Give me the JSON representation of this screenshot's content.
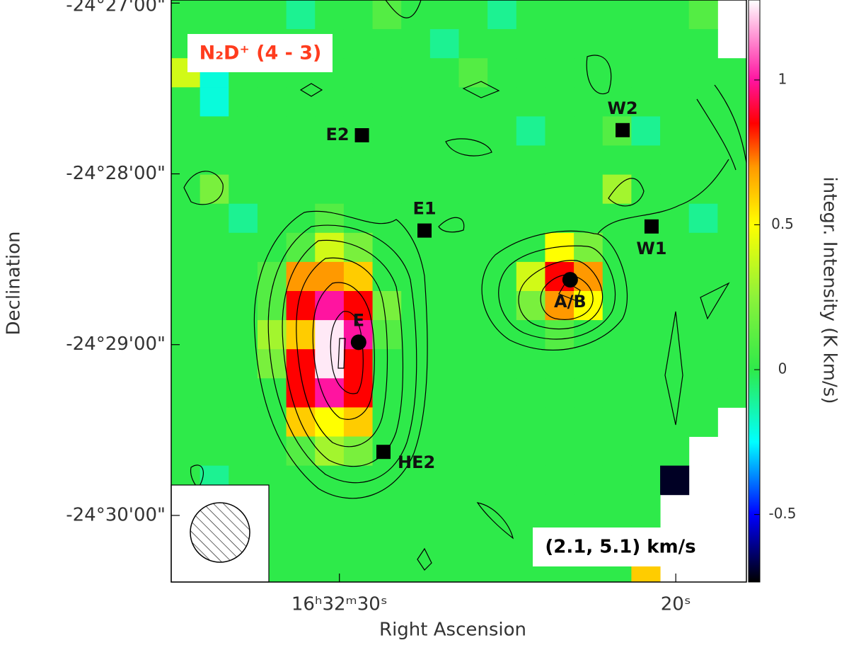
{
  "chart_data": {
    "type": "heatmap",
    "title": "N₂D⁺ (4 - 3)",
    "velocity_range": "(2.1, 5.1) km/s",
    "x_label": "Right Ascension",
    "y_label": "Declination",
    "colorbar_label": "integr. Intensity (K km/s)",
    "xlim": [
      35.0,
      17.9
    ],
    "xticks": [
      {
        "value": 30,
        "label": "16ʰ32ᵐ30ˢ"
      },
      {
        "value": 20,
        "label": "20ˢ"
      }
    ],
    "ylim": [
      -24.5065,
      -24.4497
    ],
    "yticks": [
      {
        "value": -24.45,
        "label": "-24°27'00\""
      },
      {
        "value": -24.466667,
        "label": "-24°28'00\""
      },
      {
        "value": -24.483333,
        "label": "-24°29'00\""
      },
      {
        "value": -24.5,
        "label": "-24°30'00\""
      }
    ],
    "clim": [
      -0.733,
      1.276
    ],
    "cticks": [
      1,
      0.5,
      0,
      -0.5
    ],
    "colormap": [
      {
        "value": -0.733,
        "color": "#000000"
      },
      {
        "value": -0.5,
        "color": "#0000ff"
      },
      {
        "value": -0.25,
        "color": "#00ffff"
      },
      {
        "value": 0,
        "color": "#2eea4a"
      },
      {
        "value": 0.25,
        "color": "#8cf23a"
      },
      {
        "value": 0.5,
        "color": "#ffff00"
      },
      {
        "value": 0.7,
        "color": "#ff9900"
      },
      {
        "value": 0.85,
        "color": "#ff0000"
      },
      {
        "value": 1.0,
        "color": "#ff14a0"
      },
      {
        "value": 1.276,
        "color": "#ffffff"
      }
    ],
    "grid": [
      [
        0,
        0,
        0,
        0,
        -0.1,
        0,
        0,
        0.1,
        0,
        0,
        0,
        -0.1,
        0,
        0,
        0,
        0,
        0,
        0,
        0.1,
        null
      ],
      [
        0,
        0,
        0,
        0,
        0,
        0,
        0,
        0,
        0,
        -0.1,
        0,
        0,
        0,
        0,
        0,
        0,
        0,
        0,
        0,
        null
      ],
      [
        0.4,
        -0.2,
        0,
        0,
        0,
        0,
        0,
        0,
        0,
        0,
        0.1,
        0,
        0,
        0,
        0,
        0,
        0,
        0,
        0,
        0
      ],
      [
        0,
        -0.2,
        0,
        0,
        0,
        0,
        0,
        0,
        0,
        0,
        0,
        0,
        0,
        0,
        0,
        0,
        0,
        0,
        0,
        0
      ],
      [
        0,
        0,
        0,
        0,
        0,
        0,
        0,
        0,
        0,
        0,
        0,
        0,
        -0.1,
        0,
        0,
        0.1,
        -0.1,
        0,
        0,
        0
      ],
      [
        0,
        0,
        0,
        0,
        0,
        0,
        0,
        0,
        0,
        0,
        0,
        0,
        0,
        0,
        0,
        0,
        0,
        0,
        0,
        0
      ],
      [
        0,
        0.2,
        0,
        0,
        0,
        0,
        0,
        0,
        0,
        0,
        0,
        0,
        0,
        0,
        0,
        0.3,
        0,
        0,
        0,
        0
      ],
      [
        0,
        0,
        -0.1,
        0,
        0,
        0.1,
        0,
        0,
        0,
        0,
        0,
        0,
        0,
        0,
        0,
        0,
        0,
        0,
        -0.1,
        0
      ],
      [
        0,
        0,
        0,
        0,
        0.1,
        0.4,
        0.2,
        0,
        0,
        0,
        0,
        0,
        0,
        0.5,
        0.2,
        0,
        0,
        0,
        0,
        0
      ],
      [
        0,
        0,
        0,
        0.1,
        0.7,
        0.7,
        0.6,
        0,
        0,
        0,
        0,
        0,
        0.4,
        0.85,
        0.7,
        0,
        0,
        0,
        0,
        0
      ],
      [
        0,
        0,
        0,
        0.1,
        0.85,
        1,
        0.85,
        0.2,
        0,
        0,
        0,
        0,
        0.2,
        0.7,
        0.5,
        0,
        0,
        0,
        0,
        0
      ],
      [
        0,
        0,
        0,
        0.3,
        0.6,
        1.25,
        1,
        0.1,
        0,
        0,
        0,
        0,
        0,
        0.1,
        0,
        0,
        0,
        0,
        0,
        0
      ],
      [
        0,
        0,
        0,
        0.2,
        0.85,
        1.25,
        0.85,
        0,
        0,
        0,
        0,
        0,
        0,
        0,
        0,
        0,
        0,
        0,
        0,
        0
      ],
      [
        0,
        0,
        0,
        0,
        0.85,
        1,
        0.85,
        0,
        0,
        0,
        0,
        0,
        0,
        0,
        0,
        0,
        0,
        0,
        0,
        0
      ],
      [
        0,
        0,
        0,
        0,
        0.6,
        0.5,
        0.6,
        0,
        0,
        0,
        0,
        0,
        0,
        0,
        0,
        0,
        0,
        0,
        0,
        null
      ],
      [
        0,
        0,
        0,
        0,
        0.1,
        0.3,
        0.2,
        0,
        0,
        0,
        0,
        0,
        0,
        0,
        0,
        0,
        0,
        0,
        null,
        null
      ],
      [
        0,
        -0.1,
        0,
        0,
        0,
        0,
        0,
        0,
        0,
        0,
        0,
        0,
        0,
        0,
        0,
        0,
        0,
        -0.7,
        null,
        null
      ],
      [
        0,
        0,
        0,
        0,
        0,
        0,
        0,
        0,
        0,
        0,
        0,
        0,
        0,
        0,
        0,
        0,
        0,
        null,
        null,
        null
      ],
      [
        0,
        0,
        0,
        0,
        0,
        0,
        0,
        0,
        0,
        0,
        0,
        0,
        0,
        0,
        0,
        0,
        0,
        null,
        null,
        null
      ],
      [
        0,
        0,
        0,
        0,
        0,
        0,
        0,
        0,
        0,
        0,
        0,
        0,
        0,
        0,
        0,
        0,
        0.6,
        null,
        null,
        null
      ]
    ],
    "sources": [
      {
        "label": "E2",
        "ra": 29.33,
        "dec": -24.4629,
        "marker": "square",
        "label_position": "left"
      },
      {
        "label": "W2",
        "ra": 21.58,
        "dec": -24.4624,
        "marker": "square",
        "label_position": "above"
      },
      {
        "label": "E1",
        "ra": 27.47,
        "dec": -24.4722,
        "marker": "square",
        "label_position": "above"
      },
      {
        "label": "W1",
        "ra": 20.72,
        "dec": -24.4718,
        "marker": "square",
        "label_position": "below"
      },
      {
        "label": "A/B",
        "ra": 23.14,
        "dec": -24.477,
        "marker": "circle",
        "label_position": "below"
      },
      {
        "label": "E",
        "ra": 29.43,
        "dec": -24.4831,
        "marker": "circle",
        "label_position": "above"
      },
      {
        "label": "HE2",
        "ra": 28.69,
        "dec": -24.4938,
        "marker": "square",
        "label_position": "right"
      }
    ]
  }
}
